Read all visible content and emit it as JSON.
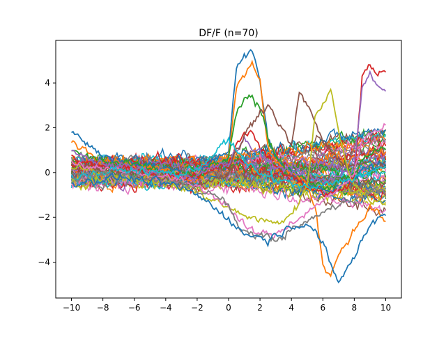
{
  "chart_data": {
    "type": "line",
    "title": "DF/F (n=70)",
    "xlabel": "",
    "ylabel": "",
    "xlim": [
      -11,
      11
    ],
    "ylim": [
      -5.6,
      5.9
    ],
    "xticks": [
      -10,
      -8,
      -6,
      -4,
      -2,
      0,
      2,
      4,
      6,
      8,
      10
    ],
    "xtick_labels": [
      "−10",
      "−8",
      "−6",
      "−4",
      "−2",
      "0",
      "2",
      "4",
      "6",
      "8",
      "10"
    ],
    "yticks": [
      -4,
      -2,
      0,
      2,
      4
    ],
    "ytick_labels": [
      "−4",
      "−2",
      "0",
      "2",
      "4"
    ],
    "grid": false,
    "legend": "none",
    "n_series": 70,
    "sample_x": [
      -10,
      -9,
      -8,
      -7,
      -6,
      -5,
      -4,
      -3,
      -2,
      -1,
      0,
      0.5,
      1,
      1.5,
      2,
      2.5,
      3,
      3.5,
      4,
      4.5,
      5,
      5.5,
      6,
      6.5,
      7,
      7.5,
      8,
      8.5,
      9,
      9.5,
      10
    ],
    "highlighted_series": [
      {
        "color": "#1f77b4",
        "values": [
          1.8,
          1.3,
          0.7,
          0.6,
          0.4,
          0.3,
          0.2,
          0.0,
          -0.2,
          0.6,
          1.0,
          4.8,
          5.1,
          5.4,
          4.0,
          1.6,
          0.6,
          0.3,
          0.1,
          -0.2,
          -0.4,
          -0.6,
          -0.8,
          -0.9,
          -0.6,
          -0.5,
          -0.3,
          0.1,
          0.2,
          0.4,
          0.3
        ]
      },
      {
        "color": "#ff7f0e",
        "values": [
          1.4,
          1.0,
          0.6,
          0.5,
          0.3,
          0.2,
          0.1,
          -0.1,
          -0.3,
          0.4,
          0.8,
          3.9,
          4.2,
          4.9,
          4.0,
          1.3,
          0.5,
          0.2,
          0.0,
          -0.3,
          -0.5,
          -1.5,
          -4.0,
          -4.6,
          -3.6,
          -3.1,
          -2.6,
          -2.1,
          -1.6,
          -1.8,
          -2.2
        ]
      },
      {
        "color": "#2ca02c",
        "values": [
          1.0,
          0.7,
          0.5,
          0.4,
          0.3,
          0.2,
          0.0,
          -0.1,
          -0.2,
          0.3,
          0.6,
          2.6,
          3.2,
          3.4,
          2.9,
          1.6,
          0.8,
          0.4,
          0.1,
          -0.1,
          -0.3,
          -0.5,
          -0.7,
          -0.6,
          -0.4,
          -0.3,
          -0.1,
          0.5,
          0.8,
          1.0,
          1.2
        ]
      },
      {
        "color": "#d62728",
        "values": [
          0.6,
          0.4,
          0.3,
          0.2,
          0.1,
          0.0,
          -0.1,
          -0.2,
          -0.1,
          0.2,
          0.5,
          1.2,
          1.9,
          1.7,
          1.2,
          0.6,
          0.3,
          0.0,
          -0.2,
          -0.4,
          -0.6,
          -0.8,
          -0.9,
          -1.0,
          -0.8,
          -0.6,
          -0.2,
          4.2,
          4.9,
          4.4,
          4.5
        ]
      },
      {
        "color": "#9467bd",
        "values": [
          0.9,
          0.6,
          0.4,
          0.3,
          0.2,
          0.1,
          0.0,
          -0.1,
          -0.2,
          0.2,
          0.4,
          1.0,
          1.4,
          1.1,
          0.9,
          0.5,
          0.3,
          0.2,
          0.1,
          -0.1,
          -0.2,
          -0.3,
          -0.4,
          -0.3,
          -0.1,
          0.2,
          0.4,
          3.8,
          4.3,
          3.9,
          3.6
        ]
      },
      {
        "color": "#8c564b",
        "values": [
          0.3,
          0.2,
          0.1,
          0.0,
          -0.1,
          -0.2,
          -0.3,
          -0.4,
          -0.5,
          -0.3,
          0.0,
          1.0,
          1.6,
          2.2,
          2.8,
          3.0,
          2.5,
          1.8,
          1.2,
          3.5,
          3.0,
          2.3,
          1.4,
          0.9,
          0.5,
          0.4,
          0.3,
          0.5,
          0.4,
          0.3,
          0.2
        ]
      },
      {
        "color": "#bcbd22",
        "values": [
          0.2,
          0.1,
          0.0,
          -0.1,
          -0.2,
          -0.3,
          -0.5,
          -0.7,
          -0.9,
          -1.2,
          -1.6,
          -1.8,
          -1.9,
          -2.0,
          -2.1,
          -2.2,
          -2.3,
          -2.1,
          -1.8,
          -1.4,
          -0.5,
          2.5,
          3.0,
          3.8,
          2.0,
          0.3,
          -0.5,
          -1.0,
          -1.2,
          -1.3,
          -1.4
        ]
      },
      {
        "color": "#e377c2",
        "values": [
          0.5,
          0.3,
          0.2,
          0.1,
          0.0,
          -0.1,
          -0.2,
          -0.4,
          -0.6,
          -1.0,
          -1.5,
          -2.0,
          -2.4,
          -2.6,
          -2.7,
          -2.8,
          -2.8,
          -2.5,
          -2.2,
          -2.0,
          -1.8,
          -1.5,
          -1.2,
          -1.0,
          -0.8,
          -0.5,
          0.0,
          1.4,
          1.8,
          2.0,
          2.1
        ]
      },
      {
        "color": "#17becf",
        "values": [
          -0.2,
          -0.1,
          0.0,
          0.1,
          0.1,
          0.0,
          0.0,
          -0.1,
          0.2,
          0.8,
          1.5,
          0.9,
          0.5,
          0.2,
          0.0,
          -0.2,
          -0.3,
          -0.4,
          -0.5,
          -0.6,
          -0.7,
          -0.7,
          -0.6,
          -0.5,
          -0.4,
          -0.3,
          -0.2,
          -0.1,
          0.0,
          0.1,
          0.2
        ]
      },
      {
        "color": "#7f7f7f",
        "values": [
          -0.3,
          -0.2,
          -0.1,
          -0.1,
          -0.2,
          -0.3,
          -0.4,
          -0.5,
          -0.7,
          -1.0,
          -1.4,
          -2.4,
          -2.6,
          -2.7,
          -2.8,
          -2.9,
          -3.0,
          -2.8,
          -2.6,
          -2.4,
          -2.2,
          -2.0,
          -1.8,
          -1.6,
          -1.4,
          -1.3,
          -1.2,
          -1.0,
          -0.9,
          -0.8,
          -0.8
        ]
      },
      {
        "color": "#1f77b4",
        "values": [
          -0.5,
          -0.4,
          -0.3,
          -0.2,
          -0.3,
          -0.4,
          -0.5,
          -0.7,
          -1.0,
          -1.5,
          -2.0,
          -2.5,
          -2.7,
          -2.8,
          -2.9,
          -3.0,
          -2.8,
          -2.6,
          -2.4,
          -2.3,
          -2.2,
          -2.6,
          -3.2,
          -4.2,
          -4.9,
          -4.3,
          -3.8,
          -3.0,
          -2.4,
          -2.0,
          -1.8
        ]
      }
    ],
    "background_series_spread": {
      "pre_stimulus_range": [
        -1.2,
        1.4
      ],
      "post_stimulus_range": [
        -3.0,
        2.0
      ]
    }
  }
}
